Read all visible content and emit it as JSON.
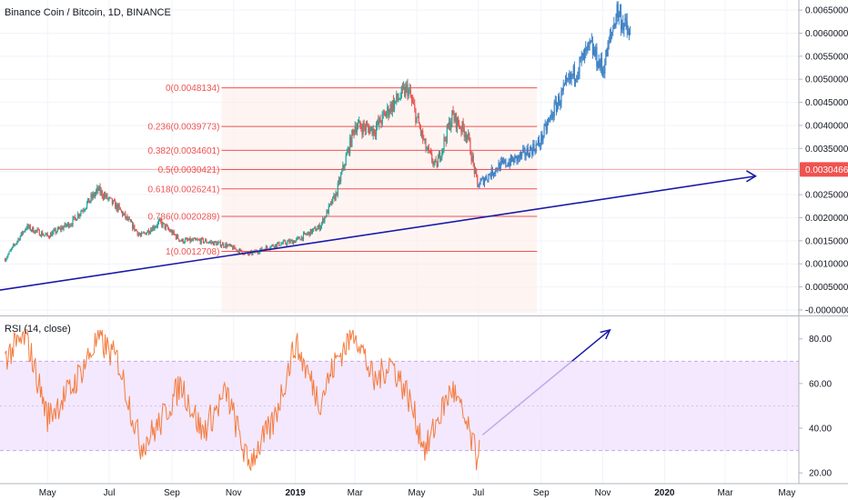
{
  "header": {
    "symbol_title": "Binance Coin / Bitcoin, 1D, BINANCE"
  },
  "price_axis": {
    "ticks": [
      "0.0065000",
      "0.0060000",
      "0.0055000",
      "0.0050000",
      "0.0045000",
      "0.0040000",
      "0.0035000",
      "0.0030000",
      "0.0025000",
      "0.0020000",
      "0.0015000",
      "0.0010000",
      "0.0005000",
      "-0.0000000"
    ],
    "current_price_label": "0.0030466",
    "current_price": 0.0030466
  },
  "rsi_panel": {
    "label": "RSI (14, close)",
    "ticks": [
      "80.00",
      "60.00",
      "40.00",
      "20.00"
    ],
    "upper_band": 70,
    "lower_band": 30
  },
  "time_axis": {
    "labels": [
      "May",
      "Jul",
      "Sep",
      "Nov",
      "2019",
      "Mar",
      "May",
      "Jul",
      "Sep",
      "Nov",
      "2020",
      "Mar",
      "May"
    ]
  },
  "fibonacci": {
    "levels": [
      {
        "label": "0(0.0048134)",
        "value": 0.0048134
      },
      {
        "label": "0.236(0.0039773)",
        "value": 0.0039773
      },
      {
        "label": "0.382(0.0034601)",
        "value": 0.0034601
      },
      {
        "label": "0.5(0.0030421)",
        "value": 0.0030421
      },
      {
        "label": "0.618(0.0026241)",
        "value": 0.0026241
      },
      {
        "label": "0.786(0.0020289)",
        "value": 0.0020289
      },
      {
        "label": "1(0.0012708)",
        "value": 0.0012708
      }
    ]
  },
  "chart_data": [
    {
      "type": "line",
      "title": "Binance Coin / Bitcoin, 1D, BINANCE",
      "x": [
        "2018-03-20",
        "2018-04-10",
        "2018-05-01",
        "2018-05-25",
        "2018-06-20",
        "2018-07-10",
        "2018-08-01",
        "2018-08-20",
        "2018-09-10",
        "2018-10-01",
        "2018-10-25",
        "2018-11-15",
        "2018-12-10",
        "2019-01-01",
        "2019-01-25",
        "2019-02-10",
        "2019-03-01",
        "2019-03-20",
        "2019-04-05",
        "2019-04-22",
        "2019-05-10",
        "2019-05-20",
        "2019-06-05",
        "2019-06-20",
        "2019-06-30",
        "2019-07-20",
        "2019-08-10",
        "2019-08-30",
        "2019-09-15",
        "2019-09-30",
        "2019-10-20",
        "2019-11-01",
        "2019-11-15",
        "2019-11-28"
      ],
      "series": [
        {
          "values": [
            0.0011,
            0.0018,
            0.0016,
            0.0019,
            0.0026,
            0.0022,
            0.0016,
            0.0019,
            0.0015,
            0.0015,
            0.0014,
            0.0012,
            0.0014,
            0.0015,
            0.0018,
            0.0025,
            0.004,
            0.0039,
            0.0044,
            0.0048,
            0.0035,
            0.0031,
            0.0042,
            0.0038,
            0.0027,
            0.0031,
            0.0033,
            0.0036,
            0.0044,
            0.005,
            0.0057,
            0.0052,
            0.0065,
            0.0059
          ]
        }
      ],
      "ylim": [
        -8e-05,
        0.0066
      ],
      "annotations": [
        "trendline",
        "forecast arrow"
      ]
    },
    {
      "type": "line",
      "title": "RSI (14, close)",
      "x": [
        "2018-03-20",
        "2018-04-10",
        "2018-05-01",
        "2018-05-25",
        "2018-06-20",
        "2018-07-10",
        "2018-08-01",
        "2018-08-20",
        "2018-09-10",
        "2018-10-01",
        "2018-10-25",
        "2018-11-15",
        "2018-12-10",
        "2019-01-01",
        "2019-01-25",
        "2019-02-10",
        "2019-03-01",
        "2019-03-20",
        "2019-04-05",
        "2019-04-22",
        "2019-05-10",
        "2019-05-20",
        "2019-06-05",
        "2019-06-20",
        "2019-06-30",
        "2019-07-02"
      ],
      "series": [
        {
          "values": [
            72,
            81,
            45,
            58,
            80,
            70,
            32,
            42,
            60,
            38,
            56,
            24,
            42,
            78,
            52,
            70,
            84,
            60,
            70,
            55,
            30,
            42,
            58,
            40,
            26,
            40
          ]
        }
      ],
      "ylim": [
        16,
        86
      ]
    }
  ],
  "colors": {
    "up_candle": "#26a69a",
    "down_candle": "#ef5350",
    "recent_candle": "#3f82c4",
    "fib_line": "#ef5350",
    "fib_fill": "#fdecea",
    "trendline": "#1a1aa8",
    "rsi_line": "#f57c3f",
    "rsi_band_fill": "#efe0fc",
    "rsi_band_line": "#c9a8e8",
    "price_tag": "#ef5350"
  }
}
